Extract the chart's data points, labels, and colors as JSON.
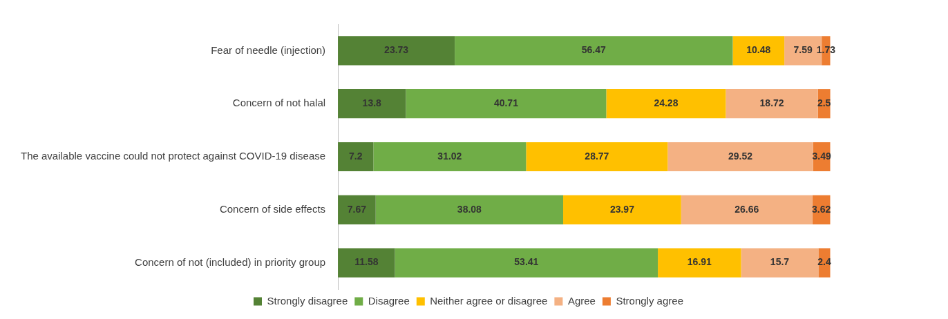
{
  "chart_data": {
    "type": "bar",
    "orientation": "horizontal",
    "stacked": true,
    "data_labels": true,
    "legend": "bottom",
    "grid": false,
    "tick_labels": "y",
    "categories": [
      "Fear of needle (injection)",
      "Concern of not halal",
      "The available vaccine could not protect against COVID-19 disease",
      "Concern of side effects",
      "Concern of not (included) in priority group"
    ],
    "series": [
      {
        "name": "Strongly disagree",
        "color": "#548235",
        "values": [
          23.73,
          13.8,
          7.2,
          7.67,
          11.58
        ]
      },
      {
        "name": "Disagree",
        "color": "#70ad47",
        "values": [
          56.47,
          40.71,
          31.02,
          38.08,
          53.41
        ]
      },
      {
        "name": "Neither agree or disagree",
        "color": "#ffc000",
        "values": [
          10.48,
          24.28,
          28.77,
          23.97,
          16.91
        ]
      },
      {
        "name": "Agree",
        "color": "#f4b183",
        "values": [
          7.59,
          18.72,
          29.52,
          26.66,
          15.7
        ]
      },
      {
        "name": "Strongly agree",
        "color": "#ed7d31",
        "values": [
          1.73,
          2.5,
          3.49,
          3.62,
          2.4
        ]
      }
    ]
  }
}
